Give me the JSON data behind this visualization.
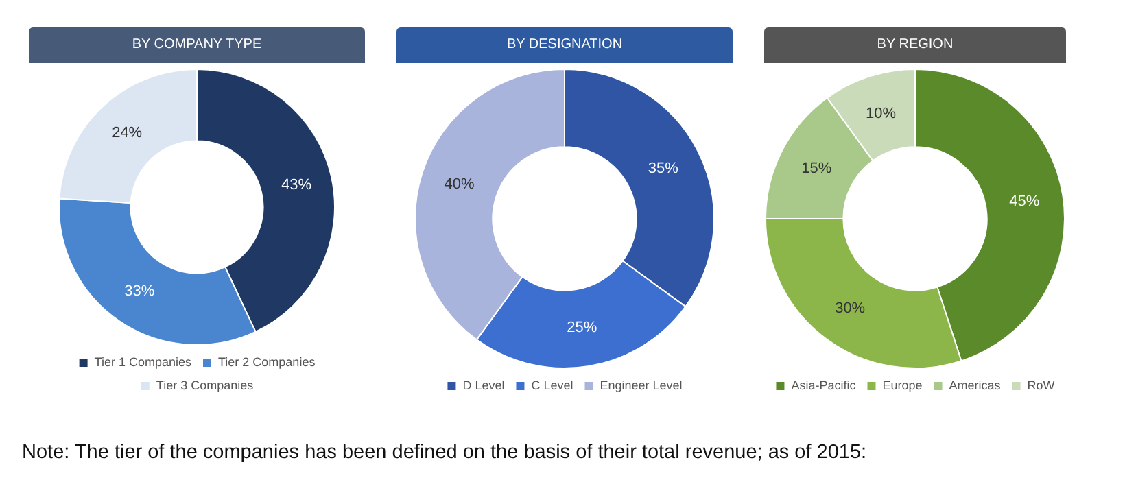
{
  "chart_data": [
    {
      "type": "donut",
      "title": "BY COMPANY TYPE",
      "categories": [
        "Tier 1 Companies",
        "Tier 2 Companies",
        "Tier 3 Companies"
      ],
      "values": [
        43,
        33,
        24
      ],
      "colors": [
        "#1f3864",
        "#4a86d0",
        "#dce6f2"
      ],
      "value_labels": [
        "43%",
        "33%",
        "24%"
      ],
      "legend": "bottom",
      "annotations": [
        "Note: The tier of the companies has been defined on the basis of their total revenue; as of 2015:"
      ]
    },
    {
      "type": "donut",
      "title": "BY DESIGNATION",
      "categories": [
        "D Level",
        "C Level",
        "Engineer Level"
      ],
      "values": [
        35,
        25,
        40
      ],
      "colors": [
        "#2f55a4",
        "#3c6fd0",
        "#a9b4dc"
      ],
      "value_labels": [
        "35%",
        "25%",
        "40%"
      ],
      "legend": "bottom"
    },
    {
      "type": "donut",
      "title": "BY REGION",
      "categories": [
        "Asia-Pacific",
        "Europe",
        "Americas",
        "RoW"
      ],
      "values": [
        45,
        30,
        15,
        10
      ],
      "colors": [
        "#5a8a2a",
        "#8cb54a",
        "#a9c98a",
        "#c9dbb8"
      ],
      "value_labels": [
        "45%",
        "30%",
        "15%",
        "10%"
      ],
      "legend": "bottom"
    }
  ]
}
